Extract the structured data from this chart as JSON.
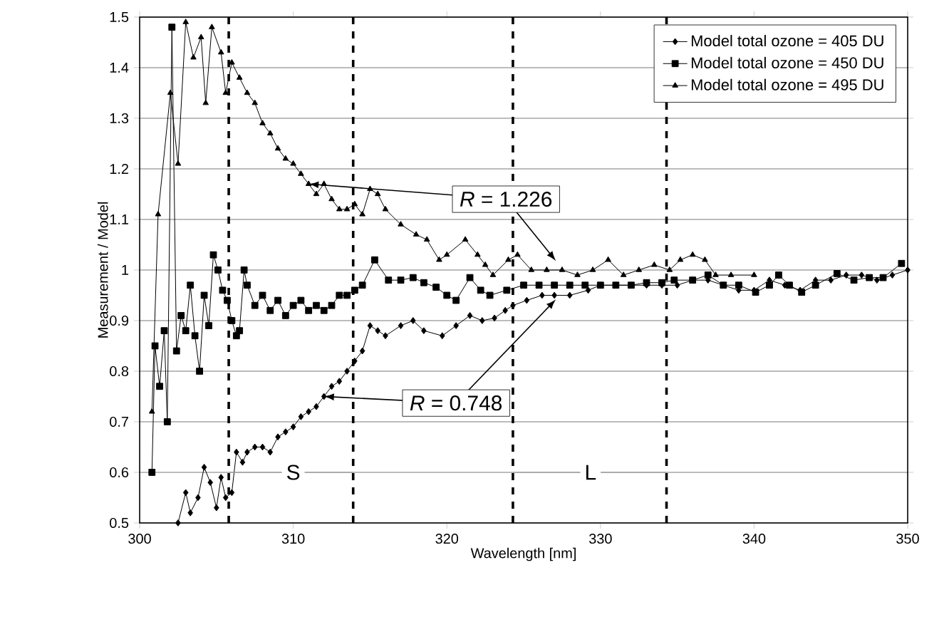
{
  "chart_data": {
    "type": "line",
    "xlabel": "Wavelength [nm]",
    "ylabel": "Measurement / Model",
    "xlim": [
      300,
      350
    ],
    "xticks": [
      300,
      310,
      320,
      330,
      340,
      350
    ],
    "ylim": [
      0.5,
      1.5
    ],
    "yticks": [
      0.5,
      0.6,
      0.7,
      0.8,
      0.9,
      1,
      1.1,
      1.2,
      1.3,
      1.4,
      1.5
    ],
    "grid": "y",
    "legend": "top right",
    "line_style": "solid",
    "series": [
      {
        "name": "Model total ozone = 405 DU",
        "color": "#000000",
        "marker": "diamond",
        "x": [
          302.5,
          303,
          303.3,
          303.8,
          304.2,
          304.6,
          305,
          305.3,
          305.6,
          306,
          306.3,
          306.7,
          307,
          307.5,
          308,
          308.5,
          309,
          309.5,
          310,
          310.5,
          311,
          311.5,
          312,
          312.5,
          313,
          313.5,
          314,
          314.5,
          315,
          315.5,
          316,
          317,
          317.8,
          318.5,
          319.7,
          320.6,
          321.5,
          322.3,
          323.1,
          323.8,
          324.3,
          325.2,
          326.2,
          327,
          328,
          329.2,
          330,
          331,
          332,
          333,
          334,
          335,
          336,
          337,
          338,
          339,
          340,
          341,
          342,
          343,
          344,
          345,
          346,
          347,
          348,
          349,
          350
        ],
        "values": [
          0.5,
          0.56,
          0.52,
          0.55,
          0.61,
          0.58,
          0.53,
          0.59,
          0.55,
          0.56,
          0.64,
          0.62,
          0.64,
          0.65,
          0.65,
          0.64,
          0.67,
          0.68,
          0.69,
          0.71,
          0.72,
          0.73,
          0.75,
          0.77,
          0.78,
          0.8,
          0.82,
          0.84,
          0.89,
          0.88,
          0.87,
          0.89,
          0.9,
          0.88,
          0.87,
          0.89,
          0.91,
          0.9,
          0.905,
          0.92,
          0.93,
          0.94,
          0.95,
          0.95,
          0.95,
          0.96,
          0.97,
          0.97,
          0.97,
          0.97,
          0.97,
          0.97,
          0.98,
          0.98,
          0.97,
          0.96,
          0.96,
          0.98,
          0.97,
          0.96,
          0.98,
          0.98,
          0.99,
          0.99,
          0.98,
          0.99,
          1.0
        ]
      },
      {
        "name": "Model total ozone = 450 DU",
        "color": "#000000",
        "marker": "square",
        "x": [
          300.8,
          301,
          301.3,
          301.6,
          301.8,
          302.1,
          302.4,
          302.7,
          303,
          303.3,
          303.6,
          303.9,
          304.2,
          304.5,
          304.8,
          305.1,
          305.4,
          305.7,
          306,
          306.3,
          306.5,
          306.8,
          307,
          307.5,
          308,
          308.5,
          309,
          309.5,
          310,
          310.5,
          311,
          311.5,
          312,
          312.5,
          313,
          313.5,
          314,
          314.5,
          315.3,
          316.2,
          317,
          317.8,
          318.5,
          319.3,
          320,
          320.6,
          321.5,
          322.2,
          322.8,
          323.9,
          325,
          326,
          327,
          328,
          329,
          330,
          331,
          332,
          333,
          334,
          334.8,
          336,
          337,
          338,
          339,
          340.1,
          341,
          341.6,
          342.3,
          343.1,
          344,
          345.4,
          346.5,
          347.5,
          348.4,
          349.6
        ],
        "values": [
          0.6,
          0.85,
          0.77,
          0.88,
          0.7,
          1.48,
          0.84,
          0.91,
          0.88,
          0.97,
          0.87,
          0.8,
          0.95,
          0.89,
          1.03,
          1.0,
          0.96,
          0.94,
          0.9,
          0.87,
          0.88,
          1.0,
          0.97,
          0.93,
          0.95,
          0.92,
          0.94,
          0.91,
          0.93,
          0.94,
          0.92,
          0.93,
          0.92,
          0.93,
          0.95,
          0.95,
          0.96,
          0.97,
          1.02,
          0.98,
          0.98,
          0.985,
          0.975,
          0.966,
          0.95,
          0.94,
          0.985,
          0.96,
          0.95,
          0.96,
          0.97,
          0.97,
          0.97,
          0.97,
          0.97,
          0.97,
          0.97,
          0.97,
          0.975,
          0.975,
          0.98,
          0.98,
          0.99,
          0.97,
          0.97,
          0.956,
          0.97,
          0.99,
          0.97,
          0.956,
          0.97,
          0.993,
          0.98,
          0.985,
          0.985,
          1.013
        ]
      },
      {
        "name": "Model total ozone = 495 DU",
        "color": "#000000",
        "marker": "triangle",
        "x": [
          300.8,
          301.2,
          302,
          302.5,
          303,
          303.5,
          304,
          304.3,
          304.7,
          305.3,
          305.6,
          306,
          306.5,
          307,
          307.5,
          308,
          308.5,
          309,
          309.5,
          310,
          310.5,
          311,
          311.5,
          312,
          312.5,
          313,
          313.5,
          314,
          314.5,
          315,
          315.5,
          316,
          317,
          318,
          318.7,
          319.5,
          320,
          321.2,
          322,
          322.5,
          323,
          324,
          324.6,
          325.5,
          326.5,
          327.5,
          328.5,
          329.5,
          330.5,
          331.5,
          332.5,
          333.5,
          334.5,
          335.2,
          336,
          336.8,
          337.5,
          338.5,
          340
        ],
        "values": [
          0.72,
          1.11,
          1.35,
          1.21,
          1.49,
          1.42,
          1.46,
          1.33,
          1.48,
          1.43,
          1.35,
          1.41,
          1.38,
          1.35,
          1.33,
          1.29,
          1.27,
          1.24,
          1.22,
          1.21,
          1.19,
          1.17,
          1.15,
          1.17,
          1.14,
          1.12,
          1.12,
          1.13,
          1.11,
          1.16,
          1.15,
          1.12,
          1.09,
          1.07,
          1.06,
          1.02,
          1.03,
          1.06,
          1.03,
          1.01,
          0.99,
          1.02,
          1.03,
          1.0,
          1.0,
          1.0,
          0.99,
          1.0,
          1.02,
          0.99,
          1.0,
          1.01,
          1.0,
          1.02,
          1.03,
          1.02,
          0.99,
          0.99,
          0.99
        ]
      }
    ],
    "ref_lines": [
      {
        "axis": "x",
        "value": 305.8,
        "line_style": "dashed",
        "color": "#000000"
      },
      {
        "axis": "x",
        "value": 313.9,
        "line_style": "dashed",
        "color": "#000000"
      },
      {
        "axis": "x",
        "value": 324.3,
        "line_style": "dashed",
        "color": "#000000"
      },
      {
        "axis": "x",
        "value": 334.3,
        "line_style": "dashed",
        "color": "#000000"
      }
    ],
    "annotations": [
      {
        "text": "*R* = 1.226",
        "x": 311,
        "y": 1.17
      },
      {
        "text": "*R* = 0.748",
        "x": 312,
        "y": 0.75
      },
      "S",
      "L"
    ]
  }
}
